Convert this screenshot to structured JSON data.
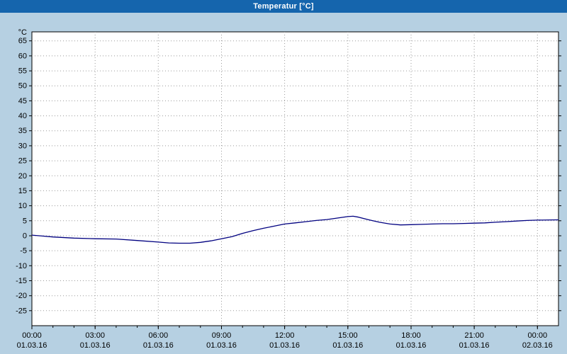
{
  "window": {
    "title": "Temperatur [°C]"
  },
  "colors": {
    "titlebar": "#1565ad",
    "titlebar_text": "#ffffff",
    "background": "#b6d0e2",
    "plot_bg": "#ffffff",
    "grid": "#9a9a9a",
    "border": "#000000",
    "text": "#000000",
    "line": "#000080"
  },
  "chart_data": {
    "type": "line",
    "title": "Temperatur [°C]",
    "ylabel": "°C",
    "xlabel": "",
    "ylim": [
      -30,
      68
    ],
    "y_tick_step": 5,
    "y_ticks": [
      65,
      60,
      55,
      50,
      45,
      40,
      35,
      30,
      25,
      20,
      15,
      10,
      5,
      0,
      -5,
      -10,
      -15,
      -20,
      -25
    ],
    "x_range_hours": [
      0,
      25
    ],
    "grid": true,
    "grid_style": "dotted",
    "legend": "none",
    "x_ticks": [
      {
        "hour": 0,
        "time": "00:00",
        "date": "01.03.16"
      },
      {
        "hour": 3,
        "time": "03:00",
        "date": "01.03.16"
      },
      {
        "hour": 6,
        "time": "06:00",
        "date": "01.03.16"
      },
      {
        "hour": 9,
        "time": "09:00",
        "date": "01.03.16"
      },
      {
        "hour": 12,
        "time": "12:00",
        "date": "01.03.16"
      },
      {
        "hour": 15,
        "time": "15:00",
        "date": "01.03.16"
      },
      {
        "hour": 18,
        "time": "18:00",
        "date": "01.03.16"
      },
      {
        "hour": 21,
        "time": "21:00",
        "date": "01.03.16"
      },
      {
        "hour": 24,
        "time": "00:00",
        "date": "02.03.16"
      }
    ],
    "series": [
      {
        "name": "Temperatur",
        "color": "#000080",
        "points": [
          [
            0,
            0.2
          ],
          [
            0.5,
            -0.1
          ],
          [
            1,
            -0.4
          ],
          [
            2,
            -0.8
          ],
          [
            3,
            -1.0
          ],
          [
            4,
            -1.1
          ],
          [
            5,
            -1.6
          ],
          [
            6,
            -2.1
          ],
          [
            6.5,
            -2.4
          ],
          [
            7,
            -2.5
          ],
          [
            7.5,
            -2.5
          ],
          [
            8,
            -2.2
          ],
          [
            8.5,
            -1.7
          ],
          [
            9,
            -1.0
          ],
          [
            9.5,
            -0.3
          ],
          [
            10,
            0.8
          ],
          [
            10.5,
            1.7
          ],
          [
            11,
            2.5
          ],
          [
            11.5,
            3.2
          ],
          [
            12,
            3.9
          ],
          [
            12.5,
            4.3
          ],
          [
            13,
            4.7
          ],
          [
            13.5,
            5.1
          ],
          [
            14,
            5.4
          ],
          [
            14.5,
            5.9
          ],
          [
            15,
            6.4
          ],
          [
            15.25,
            6.5
          ],
          [
            15.5,
            6.2
          ],
          [
            16,
            5.3
          ],
          [
            16.5,
            4.5
          ],
          [
            17,
            3.9
          ],
          [
            17.5,
            3.6
          ],
          [
            18,
            3.7
          ],
          [
            18.5,
            3.8
          ],
          [
            19,
            3.9
          ],
          [
            19.5,
            4.0
          ],
          [
            20,
            4.0
          ],
          [
            20.5,
            4.1
          ],
          [
            21,
            4.2
          ],
          [
            21.5,
            4.3
          ],
          [
            22,
            4.5
          ],
          [
            22.5,
            4.7
          ],
          [
            23,
            4.9
          ],
          [
            23.5,
            5.1
          ],
          [
            24,
            5.2
          ],
          [
            25,
            5.3
          ]
        ]
      }
    ]
  }
}
